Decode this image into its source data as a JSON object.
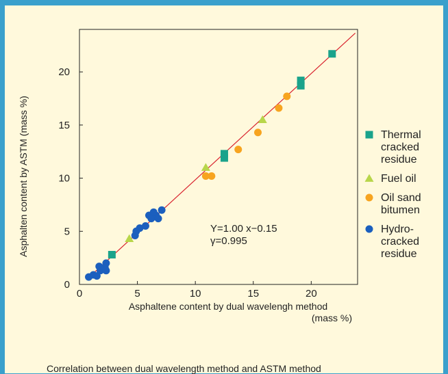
{
  "caption": "Correlation between dual wavelength  method and ASTM method",
  "colors": {
    "thermal": "#1aa38b",
    "fuel": "#b8d64a",
    "oilsand": "#f7a41f",
    "hydro": "#1b5fbe",
    "fit_line": "#d9232e",
    "background": "#fff9dc",
    "border": "#3aa0cc"
  },
  "chart_data": {
    "type": "scatter",
    "title": "",
    "xlabel": "Asphaltene content by dual wavelengh method",
    "xlabel_unit": "(mass %)",
    "ylabel": "Asphalten content by ASTM (mass %)",
    "xlim": [
      0,
      24
    ],
    "ylim": [
      0,
      24
    ],
    "x_ticks": [
      0,
      5,
      10,
      15,
      20
    ],
    "y_ticks": [
      0,
      5,
      10,
      15,
      20
    ],
    "grid": false,
    "legend_position": "right",
    "annotations": [
      "Y=1.00 x−0.15",
      "γ=0.995"
    ],
    "fit_line": {
      "slope": 1.0,
      "intercept": -0.15,
      "x_range": [
        0.6,
        23.8
      ]
    },
    "series": [
      {
        "name": "Thermal cracked residue",
        "legend_lines": [
          "Thermal",
          "cracked",
          "residue"
        ],
        "marker": "square",
        "color_key": "thermal",
        "points": [
          [
            2.8,
            2.8
          ],
          [
            12.5,
            11.9
          ],
          [
            12.5,
            12.3
          ],
          [
            19.1,
            18.7
          ],
          [
            19.1,
            19.2
          ],
          [
            21.8,
            21.7
          ]
        ]
      },
      {
        "name": "Fuel oil",
        "legend_lines": [
          "Fuel oil"
        ],
        "marker": "triangle",
        "color_key": "fuel",
        "points": [
          [
            4.3,
            4.3
          ],
          [
            10.9,
            11.0
          ],
          [
            15.8,
            15.5
          ]
        ]
      },
      {
        "name": "Oil sand bitumen",
        "legend_lines": [
          "Oil sand",
          "bitumen"
        ],
        "marker": "circle",
        "color_key": "oilsand",
        "points": [
          [
            10.9,
            10.2
          ],
          [
            11.4,
            10.2
          ],
          [
            13.7,
            12.7
          ],
          [
            15.4,
            14.3
          ],
          [
            17.2,
            16.6
          ],
          [
            17.9,
            17.7
          ]
        ]
      },
      {
        "name": "Hydro-cracked residue",
        "legend_lines": [
          "Hydro-",
          "cracked",
          "residue"
        ],
        "marker": "circle",
        "color_key": "hydro",
        "points": [
          [
            0.8,
            0.7
          ],
          [
            1.2,
            0.9
          ],
          [
            1.5,
            0.8
          ],
          [
            1.8,
            1.3
          ],
          [
            1.7,
            1.7
          ],
          [
            2.2,
            1.6
          ],
          [
            2.3,
            2.0
          ],
          [
            2.3,
            1.3
          ],
          [
            4.8,
            4.6
          ],
          [
            4.9,
            5.0
          ],
          [
            5.2,
            5.3
          ],
          [
            5.7,
            5.5
          ],
          [
            6.0,
            6.5
          ],
          [
            6.2,
            6.2
          ],
          [
            6.6,
            6.5
          ],
          [
            6.8,
            6.2
          ],
          [
            7.1,
            7.0
          ],
          [
            6.4,
            6.8
          ]
        ]
      }
    ]
  }
}
